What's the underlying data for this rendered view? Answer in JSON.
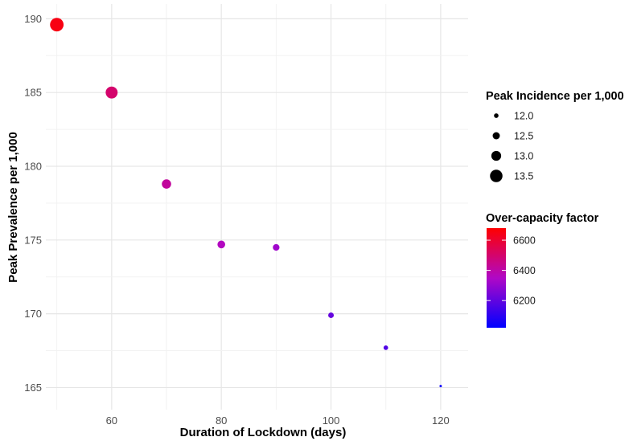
{
  "chart_data": {
    "type": "scatter",
    "xlabel": "Duration of Lockdown (days)",
    "ylabel": "Peak Prevalence per 1,000",
    "xlim": [
      48,
      125
    ],
    "ylim": [
      163.5,
      191
    ],
    "xticks": [
      60,
      80,
      100,
      120
    ],
    "yticks": [
      165,
      170,
      175,
      180,
      185,
      190
    ],
    "grid": true,
    "points": [
      {
        "x": 50,
        "y": 189.6,
        "size": 13.7,
        "color": 6650
      },
      {
        "x": 60,
        "y": 185.0,
        "size": 13.4,
        "color": 6500
      },
      {
        "x": 70,
        "y": 178.8,
        "size": 12.9,
        "color": 6420
      },
      {
        "x": 80,
        "y": 174.7,
        "size": 12.6,
        "color": 6360
      },
      {
        "x": 90,
        "y": 174.5,
        "size": 12.4,
        "color": 6320
      },
      {
        "x": 100,
        "y": 169.9,
        "size": 12.2,
        "color": 6210
      },
      {
        "x": 110,
        "y": 167.7,
        "size": 12.0,
        "color": 6170
      },
      {
        "x": 120,
        "y": 165.1,
        "size": 11.6,
        "color": 6040
      }
    ],
    "size_legend": {
      "title": "Peak Incidence per 1,000",
      "values": [
        12.0,
        12.5,
        13.0,
        13.5
      ],
      "labels": [
        "12.0",
        "12.5",
        "13.0",
        "13.5"
      ]
    },
    "color_legend": {
      "title": "Over-capacity factor",
      "range": [
        6020,
        6680
      ],
      "ticks": [
        6200,
        6400,
        6600
      ],
      "tick_labels": [
        "6200",
        "6400",
        "6600"
      ],
      "low_color": "#0000ff",
      "high_color": "#ff0000"
    },
    "legend_position": "right"
  }
}
